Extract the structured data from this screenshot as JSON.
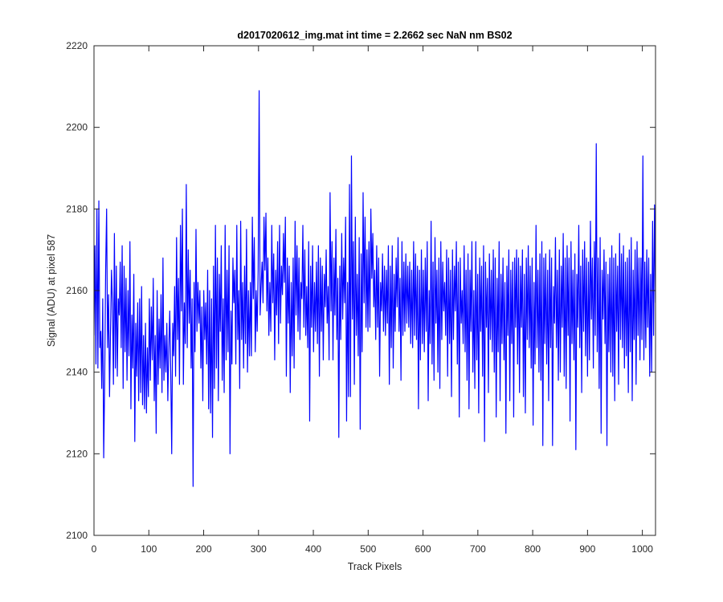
{
  "chart_data": {
    "type": "line",
    "title": "d2017020612_img.mat int time = 2.2662 sec  NaN nm BS02",
    "xlabel": "Track Pixels",
    "ylabel": "Signal (ADU) at pixel 587",
    "xlim": [
      0,
      1024
    ],
    "ylim": [
      2100,
      2220
    ],
    "xticks": [
      0,
      100,
      200,
      300,
      400,
      500,
      600,
      700,
      800,
      900,
      1000
    ],
    "yticks": [
      2100,
      2120,
      2140,
      2160,
      2180,
      2200,
      2220
    ],
    "grid": false,
    "box": true,
    "line_color": "#0000ff",
    "axis_color": "#262626",
    "series": [
      {
        "values": [
          2149,
          2171,
          2142,
          2180,
          2141,
          2182,
          2146,
          2150,
          2136,
          2158,
          2119,
          2138,
          2165,
          2180,
          2146,
          2159,
          2134,
          2150,
          2165,
          2157,
          2137,
          2174,
          2141,
          2166,
          2139,
          2158,
          2154,
          2167,
          2146,
          2171,
          2136,
          2166,
          2145,
          2163,
          2138,
          2160,
          2144,
          2172,
          2131,
          2154,
          2141,
          2164,
          2123,
          2152,
          2139,
          2157,
          2133,
          2158,
          2135,
          2161,
          2132,
          2149,
          2131,
          2152,
          2130,
          2146,
          2134,
          2158,
          2138,
          2156,
          2143,
          2163,
          2133,
          2149,
          2125,
          2160,
          2137,
          2153,
          2141,
          2159,
          2135,
          2168,
          2138,
          2149,
          2140,
          2152,
          2133,
          2146,
          2155,
          2140,
          2120,
          2152,
          2144,
          2161,
          2139,
          2173,
          2148,
          2163,
          2137,
          2176,
          2155,
          2180,
          2137,
          2157,
          2147,
          2186,
          2146,
          2170,
          2152,
          2165,
          2141,
          2158,
          2112,
          2162,
          2145,
          2175,
          2150,
          2162,
          2152,
          2160,
          2141,
          2156,
          2133,
          2160,
          2148,
          2157,
          2142,
          2165,
          2131,
          2160,
          2130,
          2158,
          2124,
          2166,
          2136,
          2176,
          2141,
          2168,
          2133,
          2164,
          2150,
          2171,
          2138,
          2158,
          2135,
          2176,
          2143,
          2165,
          2145,
          2171,
          2120,
          2155,
          2142,
          2168,
          2157,
          2165,
          2142,
          2176,
          2148,
          2160,
          2136,
          2177,
          2148,
          2162,
          2141,
          2166,
          2147,
          2175,
          2140,
          2160,
          2144,
          2162,
          2144,
          2178,
          2158,
          2173,
          2145,
          2160,
          2150,
          2165,
          2209,
          2154,
          2161,
          2167,
          2157,
          2178,
          2165,
          2179,
          2155,
          2168,
          2149,
          2162,
          2150,
          2176,
          2157,
          2169,
          2143,
          2165,
          2154,
          2172,
          2147,
          2176,
          2152,
          2166,
          2159,
          2174,
          2162,
          2178,
          2139,
          2168,
          2152,
          2166,
          2135,
          2162,
          2144,
          2168,
          2141,
          2177,
          2154,
          2171,
          2150,
          2168,
          2148,
          2162,
          2158,
          2176,
          2151,
          2170,
          2149,
          2161,
          2146,
          2172,
          2128,
          2166,
          2151,
          2171,
          2145,
          2162,
          2150,
          2167,
          2147,
          2171,
          2139,
          2168,
          2150,
          2166,
          2143,
          2164,
          2156,
          2170,
          2152,
          2161,
          2143,
          2184,
          2155,
          2172,
          2143,
          2168,
          2154,
          2175,
          2148,
          2163,
          2124,
          2166,
          2148,
          2174,
          2153,
          2168,
          2157,
          2178,
          2128,
          2162,
          2134,
          2186,
          2134,
          2193,
          2153,
          2172,
          2137,
          2178,
          2149,
          2164,
          2144,
          2173,
          2126,
          2169,
          2145,
          2184,
          2157,
          2178,
          2151,
          2170,
          2150,
          2172,
          2151,
          2180,
          2163,
          2174,
          2156,
          2165,
          2148,
          2171,
          2151,
          2168,
          2139,
          2162,
          2155,
          2169,
          2150,
          2166,
          2149,
          2165,
          2152,
          2171,
          2137,
          2166,
          2146,
          2171,
          2141,
          2164,
          2150,
          2168,
          2156,
          2173,
          2150,
          2163,
          2138,
          2172,
          2149,
          2167,
          2150,
          2169,
          2152,
          2166,
          2151,
          2167,
          2147,
          2165,
          2146,
          2172,
          2149,
          2169,
          2148,
          2166,
          2131,
          2165,
          2143,
          2170,
          2147,
          2165,
          2145,
          2168,
          2150,
          2172,
          2133,
          2160,
          2147,
          2177,
          2142,
          2167,
          2138,
          2173,
          2152,
          2165,
          2140,
          2168,
          2136,
          2172,
          2148,
          2167,
          2155,
          2162,
          2149,
          2170,
          2139,
          2168,
          2147,
          2165,
          2134,
          2170,
          2148,
          2166,
          2155,
          2172,
          2142,
          2167,
          2129,
          2168,
          2152,
          2160,
          2147,
          2171,
          2145,
          2165,
          2138,
          2169,
          2131,
          2165,
          2150,
          2172,
          2140,
          2160,
          2136,
          2172,
          2143,
          2164,
          2130,
          2168,
          2150,
          2166,
          2139,
          2171,
          2123,
          2167,
          2151,
          2163,
          2135,
          2169,
          2148,
          2165,
          2145,
          2170,
          2140,
          2168,
          2129,
          2163,
          2145,
          2172,
          2133,
          2164,
          2147,
          2168,
          2143,
          2162,
          2125,
          2166,
          2149,
          2170,
          2133,
          2165,
          2147,
          2167,
          2129,
          2168,
          2151,
          2170,
          2142,
          2168,
          2135,
          2166,
          2151,
          2170,
          2134,
          2164,
          2130,
          2168,
          2148,
          2171,
          2146,
          2166,
          2141,
          2168,
          2127,
          2162,
          2142,
          2176,
          2146,
          2165,
          2140,
          2169,
          2138,
          2172,
          2122,
          2168,
          2147,
          2169,
          2142,
          2165,
          2133,
          2170,
          2146,
          2168,
          2122,
          2161,
          2152,
          2173,
          2146,
          2165,
          2138,
          2170,
          2140,
          2166,
          2151,
          2174,
          2139,
          2168,
          2136,
          2171,
          2149,
          2168,
          2128,
          2172,
          2147,
          2165,
          2143,
          2169,
          2121,
          2164,
          2151,
          2176,
          2146,
          2166,
          2135,
          2170,
          2150,
          2172,
          2144,
          2168,
          2139,
          2167,
          2143,
          2177,
          2153,
          2168,
          2141,
          2172,
          2149,
          2196,
          2145,
          2168,
          2136,
          2173,
          2125,
          2165,
          2153,
          2170,
          2147,
          2167,
          2122,
          2164,
          2145,
          2168,
          2140,
          2171,
          2139,
          2168,
          2133,
          2169,
          2150,
          2166,
          2137,
          2174,
          2148,
          2169,
          2146,
          2171,
          2141,
          2167,
          2144,
          2168,
          2135,
          2170,
          2145,
          2173,
          2133,
          2165,
          2148,
          2170,
          2137,
          2172,
          2149,
          2168,
          2143,
          2168,
          2148,
          2193,
          2143,
          2167,
          2146,
          2170,
          2151,
          2168,
          2139,
          2164,
          2140,
          2177,
          2149,
          2181,
          2157
        ]
      }
    ]
  }
}
